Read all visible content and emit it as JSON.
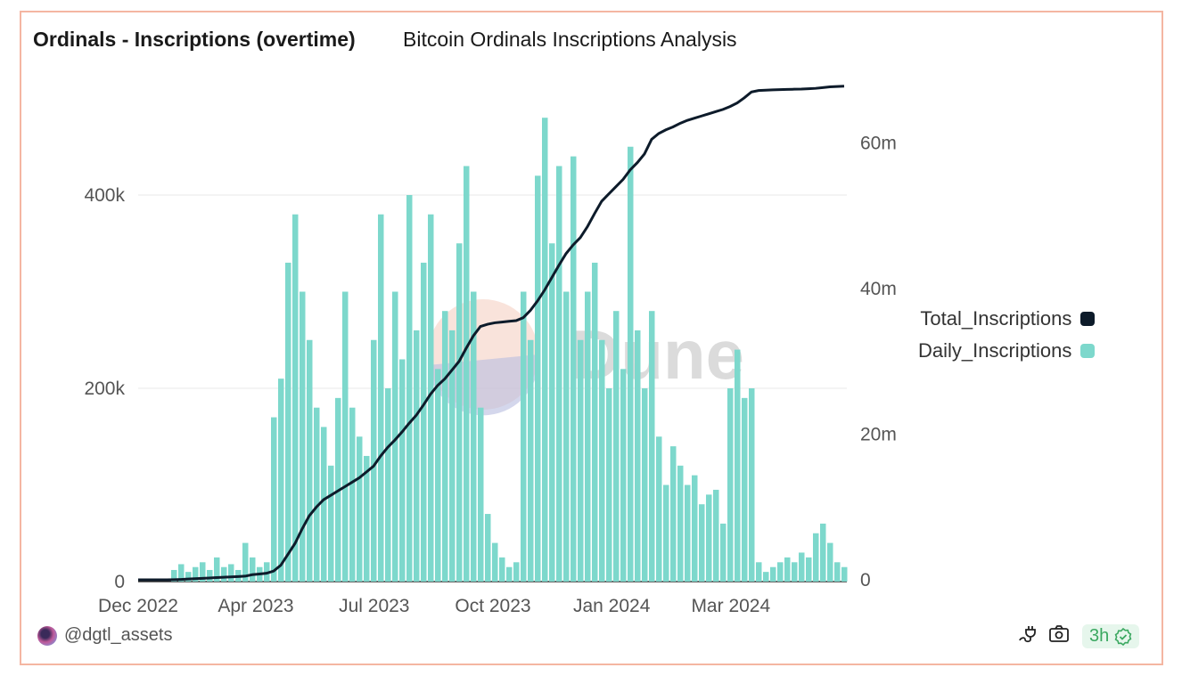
{
  "header": {
    "title": "Ordinals - Inscriptions (overtime)",
    "subtitle": "Bitcoin Ordinals Inscriptions Analysis"
  },
  "footer": {
    "user": "@dgtl_assets",
    "freshness": "3h"
  },
  "watermark": "Dune",
  "colors": {
    "total": "#0d1b2a",
    "daily": "#7dd8cc",
    "border": "#f4b6a2"
  },
  "chart_data": {
    "type": "bar+line",
    "title": "Ordinals - Inscriptions (overtime)",
    "x_ticks": [
      {
        "label": "Dec 2022",
        "at_index": 0
      },
      {
        "label": "Apr 2023",
        "at_index": 16.5
      },
      {
        "label": "Jul 2023",
        "at_index": 33.1
      },
      {
        "label": "Oct 2023",
        "at_index": 49.75
      },
      {
        "label": "Jan 2024",
        "at_index": 66.4
      },
      {
        "label": "Mar 2024",
        "at_index": 83.1
      }
    ],
    "y_left": {
      "ticks": [
        {
          "v": 0,
          "label": "0"
        },
        {
          "v": 200000,
          "label": "200k"
        },
        {
          "v": 400000,
          "label": "400k"
        }
      ],
      "range": [
        0,
        505000
      ]
    },
    "y_right": {
      "ticks": [
        {
          "v": 0,
          "label": "0"
        },
        {
          "v": 20000000,
          "label": "20m"
        },
        {
          "v": 40000000,
          "label": "40m"
        },
        {
          "v": 60000000,
          "label": "60m"
        }
      ],
      "range": [
        0,
        68000000
      ]
    },
    "grid": true,
    "legend": {
      "placement": "right",
      "items": [
        "Total_Inscriptions",
        "Daily_Inscriptions"
      ]
    },
    "series": [
      {
        "name": "Daily_Inscriptions",
        "type": "bar",
        "axis": "left",
        "unit": "k",
        "values": [
          0,
          0,
          0,
          0,
          0,
          12,
          18,
          10,
          15,
          20,
          12,
          25,
          15,
          18,
          12,
          40,
          25,
          15,
          20,
          170,
          210,
          330,
          380,
          300,
          250,
          180,
          160,
          120,
          190,
          300,
          180,
          150,
          130,
          250,
          380,
          200,
          300,
          230,
          400,
          260,
          330,
          380,
          220,
          280,
          260,
          350,
          430,
          300,
          180,
          70,
          40,
          25,
          15,
          20,
          300,
          250,
          420,
          480,
          350,
          430,
          300,
          440,
          250,
          300,
          330,
          250,
          200,
          280,
          220,
          450,
          260,
          200,
          280,
          150,
          100,
          140,
          120,
          100,
          110,
          80,
          90,
          95,
          60,
          200,
          240,
          190,
          200,
          20,
          10,
          15,
          20,
          25,
          20,
          30,
          25,
          50,
          60,
          40,
          20,
          15
        ]
      },
      {
        "name": "Total_Inscriptions",
        "type": "line",
        "axis": "right",
        "unit": "m",
        "values": [
          0,
          0,
          0,
          0,
          0,
          0.02,
          0.05,
          0.1,
          0.15,
          0.2,
          0.25,
          0.3,
          0.35,
          0.4,
          0.45,
          0.5,
          0.7,
          0.8,
          0.9,
          1.2,
          2,
          3.5,
          5,
          7,
          8.8,
          10,
          11,
          11.6,
          12.2,
          12.8,
          13.4,
          14,
          14.8,
          15.6,
          17,
          18.2,
          19.2,
          20.3,
          21.5,
          22.6,
          24,
          25.5,
          26.7,
          27.6,
          28.8,
          30,
          31.8,
          33.5,
          34.8,
          35.1,
          35.3,
          35.4,
          35.5,
          35.6,
          36,
          37,
          38.3,
          39.8,
          41.5,
          43.2,
          44.8,
          46,
          47,
          48.5,
          50.3,
          52,
          53,
          54,
          55,
          56.3,
          57.3,
          58.5,
          60.5,
          61.3,
          61.8,
          62.2,
          62.7,
          63.1,
          63.4,
          63.7,
          64,
          64.3,
          64.6,
          65,
          65.5,
          66.2,
          67,
          67.2,
          67.25,
          67.3,
          67.32,
          67.35,
          67.38,
          67.4,
          67.45,
          67.5,
          67.6,
          67.7,
          67.75,
          67.8
        ]
      }
    ]
  }
}
